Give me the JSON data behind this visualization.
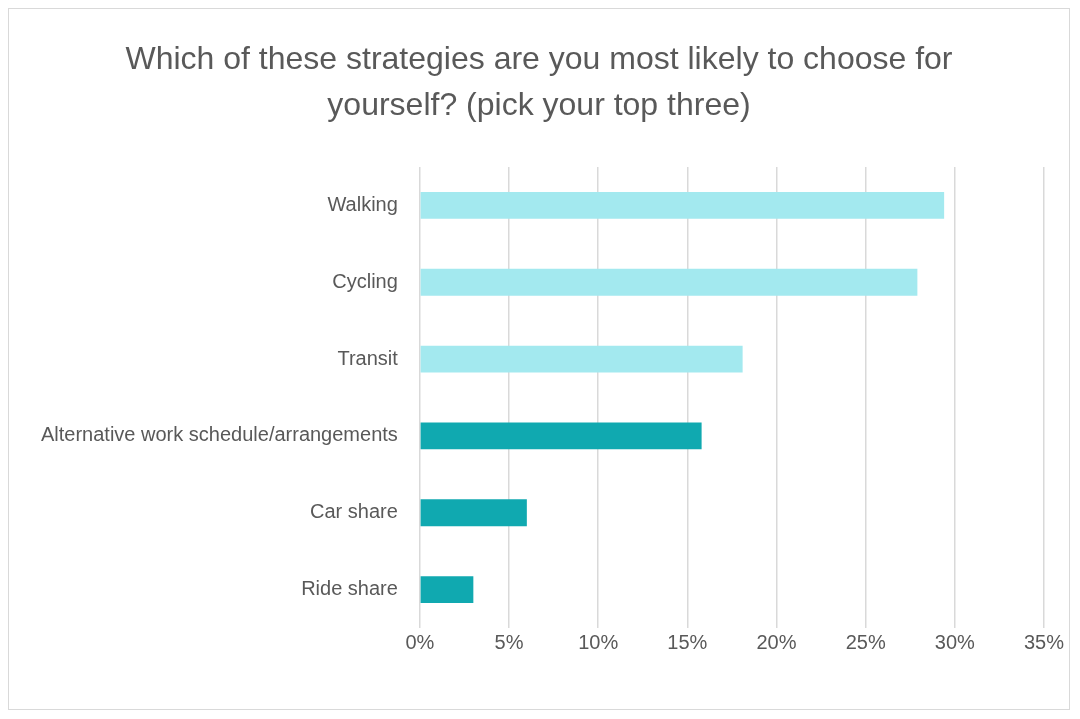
{
  "chart_data": {
    "type": "bar",
    "orientation": "horizontal",
    "title": "Which of these strategies are you most likely to choose for yourself? (pick your top three)",
    "categories": [
      "Walking",
      "Cycling",
      "Transit",
      "Alternative work schedule/arrangements",
      "Car share",
      "Ride share"
    ],
    "values": [
      29.4,
      27.9,
      18.1,
      15.8,
      6.0,
      3.0
    ],
    "colors": [
      "#a3e9ef",
      "#a3e9ef",
      "#a3e9ef",
      "#10a9b0",
      "#10a9b0",
      "#10a9b0"
    ],
    "xlim": [
      0,
      35
    ],
    "xticks": [
      {
        "value": 0,
        "label": "0%"
      },
      {
        "value": 5,
        "label": "5%"
      },
      {
        "value": 10,
        "label": "10%"
      },
      {
        "value": 15,
        "label": "15%"
      },
      {
        "value": 20,
        "label": "20%"
      },
      {
        "value": 25,
        "label": "25%"
      },
      {
        "value": 30,
        "label": "30%"
      },
      {
        "value": 35,
        "label": "35%"
      }
    ],
    "grid": "x",
    "legend": false
  }
}
